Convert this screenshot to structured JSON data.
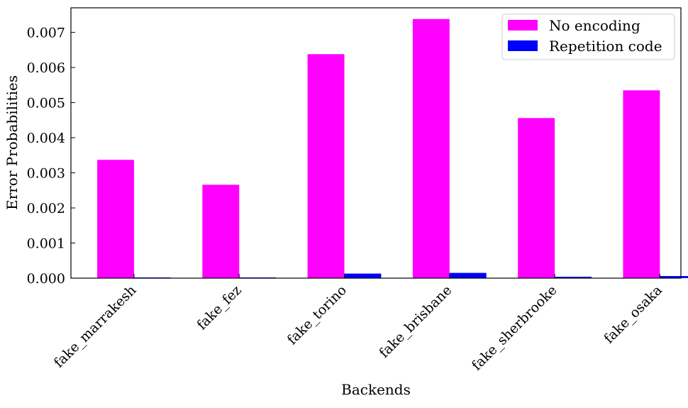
{
  "chart_data": {
    "type": "bar",
    "title": "",
    "xlabel": "Backends",
    "ylabel": "Error Probabilities",
    "categories": [
      "fake_marrakesh",
      "fake_fez",
      "fake_torino",
      "fake_brisbane",
      "fake_sherbrooke",
      "fake_osaka"
    ],
    "series": [
      {
        "name": "No encoding",
        "color": "#ff00ff",
        "values": [
          0.00337,
          0.00266,
          0.00638,
          0.00738,
          0.00456,
          0.00535
        ]
      },
      {
        "name": "Repetition code",
        "color": "#0000ff",
        "values": [
          2e-05,
          2e-05,
          0.00013,
          0.00015,
          4e-05,
          6e-05
        ]
      }
    ],
    "ylim": [
      0,
      0.0077
    ],
    "yticks": [
      "0.000",
      "0.001",
      "0.002",
      "0.003",
      "0.004",
      "0.005",
      "0.006",
      "0.007"
    ],
    "grid": false,
    "legend_position": "top-right"
  }
}
